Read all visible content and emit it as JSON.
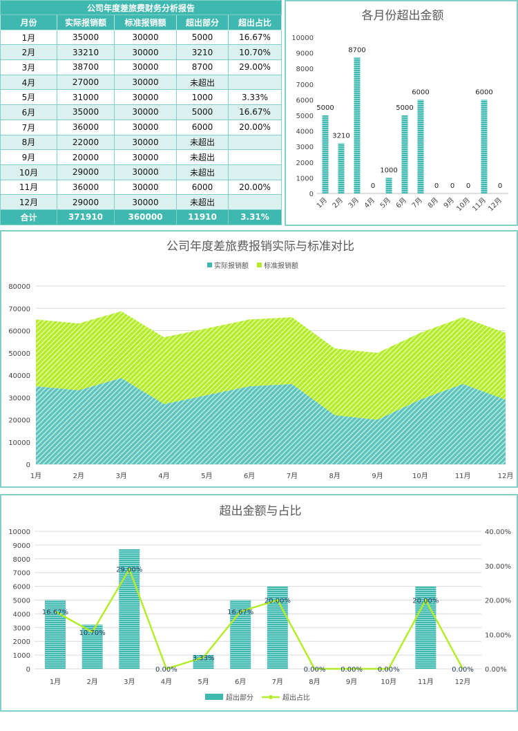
{
  "table": {
    "title": "公司年度差旅费财务分析报告",
    "headers": [
      "月份",
      "实际报销额",
      "标准报销额",
      "超出部分",
      "超出占比"
    ],
    "rows": [
      [
        "1月",
        "35000",
        "30000",
        "5000",
        "16.67%"
      ],
      [
        "2月",
        "33210",
        "30000",
        "3210",
        "10.70%"
      ],
      [
        "3月",
        "38700",
        "30000",
        "8700",
        "29.00%"
      ],
      [
        "4月",
        "27000",
        "30000",
        "未超出",
        ""
      ],
      [
        "5月",
        "31000",
        "30000",
        "1000",
        "3.33%"
      ],
      [
        "6月",
        "35000",
        "30000",
        "5000",
        "16.67%"
      ],
      [
        "7月",
        "36000",
        "30000",
        "6000",
        "20.00%"
      ],
      [
        "8月",
        "22000",
        "30000",
        "未超出",
        ""
      ],
      [
        "9月",
        "20000",
        "30000",
        "未超出",
        ""
      ],
      [
        "10月",
        "29000",
        "30000",
        "未超出",
        ""
      ],
      [
        "11月",
        "36000",
        "30000",
        "6000",
        "20.00%"
      ],
      [
        "12月",
        "29000",
        "30000",
        "未超出",
        ""
      ]
    ],
    "total": [
      "合计",
      "371910",
      "360000",
      "11910",
      "3.31%"
    ]
  },
  "colors": {
    "teal": "#3fb8b0",
    "lime": "#b4ec2a",
    "grid": "#d9d9d9"
  },
  "chart_data": [
    {
      "type": "bar",
      "title": "各月份超出金额",
      "categories": [
        "1月",
        "2月",
        "3月",
        "4月",
        "5月",
        "6月",
        "7月",
        "8月",
        "9月",
        "10月",
        "11月",
        "12月"
      ],
      "values": [
        5000,
        3210,
        8700,
        0,
        1000,
        5000,
        6000,
        0,
        0,
        0,
        6000,
        0
      ],
      "yticks": [
        "0",
        "1000",
        "2000",
        "3000",
        "4000",
        "5000",
        "6000",
        "7000",
        "8000",
        "9000",
        "10000"
      ],
      "ylim": [
        0,
        10000
      ],
      "grid": false
    },
    {
      "type": "area",
      "stacked": true,
      "title": "公司年度差旅费报销实际与标准对比",
      "categories": [
        "1月",
        "2月",
        "3月",
        "4月",
        "5月",
        "6月",
        "7月",
        "8月",
        "9月",
        "10月",
        "11月",
        "12月"
      ],
      "series": [
        {
          "name": "实际报销额",
          "values": [
            35000,
            33210,
            38700,
            27000,
            31000,
            35000,
            36000,
            22000,
            20000,
            29000,
            36000,
            29000
          ]
        },
        {
          "name": "标准报销额",
          "values": [
            30000,
            30000,
            30000,
            30000,
            30000,
            30000,
            30000,
            30000,
            30000,
            30000,
            30000,
            30000
          ]
        }
      ],
      "yticks": [
        "0",
        "10000",
        "20000",
        "30000",
        "40000",
        "50000",
        "60000",
        "70000",
        "80000"
      ],
      "ylim": [
        0,
        80000
      ],
      "grid": true,
      "legend": "top"
    },
    {
      "type": "bar+line",
      "title": "超出金额与占比",
      "categories": [
        "1月",
        "2月",
        "3月",
        "4月",
        "5月",
        "6月",
        "7月",
        "8月",
        "9月",
        "10月",
        "11月",
        "12月"
      ],
      "series": [
        {
          "name": "超出部分",
          "type": "bar",
          "axis": "left",
          "values": [
            5000,
            3210,
            8700,
            0,
            1000,
            5000,
            6000,
            0,
            0,
            0,
            6000,
            0
          ]
        },
        {
          "name": "超出占比",
          "type": "line",
          "axis": "right",
          "values": [
            16.67,
            10.7,
            29.0,
            0,
            3.33,
            16.67,
            20.0,
            0,
            0,
            0,
            20.0,
            0
          ],
          "labels": [
            "16.67%",
            "10.70%",
            "29.00%",
            "0.00%",
            "3.33%",
            "16.67%",
            "20.00%",
            "0.00%",
            "0.00%",
            "0.00%",
            "20.00%",
            "0.00%"
          ]
        }
      ],
      "yticks": [
        "0",
        "1000",
        "2000",
        "3000",
        "4000",
        "5000",
        "6000",
        "7000",
        "8000",
        "9000",
        "10000"
      ],
      "y2ticks": [
        "0.00%",
        "10.00%",
        "20.00%",
        "30.00%",
        "40.00%"
      ],
      "ylim": [
        0,
        10000
      ],
      "y2lim": [
        0,
        40
      ],
      "grid": true,
      "legend": "bottom"
    }
  ]
}
